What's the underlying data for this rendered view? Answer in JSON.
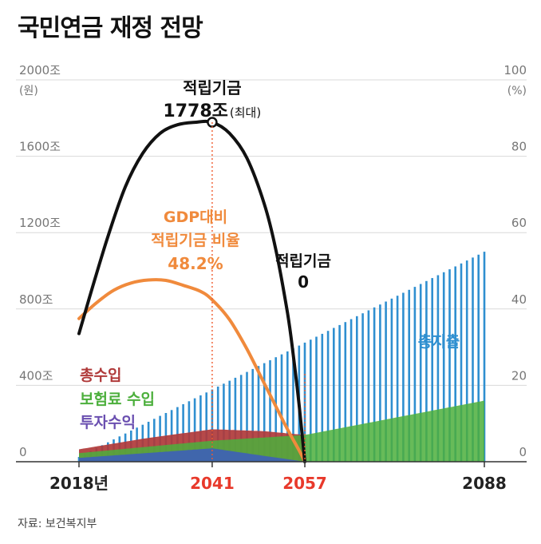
{
  "title": "국민연금 재정 전망",
  "source": "자료: 보건복지부",
  "chart_data": {
    "type": "bar",
    "title": "국민연금 재정 전망",
    "left_axis": {
      "unit": "(원)",
      "ticks": [
        "0",
        "400조",
        "800조",
        "1200조",
        "1600조",
        "2000조"
      ],
      "values": [
        0,
        400,
        800,
        1200,
        1600,
        2000
      ],
      "ylim": [
        0,
        2000
      ]
    },
    "right_axis": {
      "unit": "(%)",
      "ticks": [
        "0",
        "20",
        "40",
        "60",
        "80",
        "100"
      ],
      "values": [
        0,
        20,
        40,
        60,
        80,
        100
      ],
      "ylim": [
        0,
        100
      ]
    },
    "x_ticks": [
      {
        "year": 2018,
        "label": "2018년",
        "color": "#222222"
      },
      {
        "year": 2041,
        "label": "2041",
        "color": "#e8392b"
      },
      {
        "year": 2057,
        "label": "2057",
        "color": "#e8392b"
      },
      {
        "year": 2088,
        "label": "2088",
        "color": "#222222"
      }
    ],
    "xlim": [
      2018,
      2088
    ],
    "grid": true,
    "series": [
      {
        "name": "적립기금",
        "type": "line",
        "axis": "left",
        "color": "#111111",
        "points": [
          [
            2018,
            671
          ],
          [
            2020,
            880
          ],
          [
            2023,
            1180
          ],
          [
            2026,
            1440
          ],
          [
            2029,
            1615
          ],
          [
            2032,
            1720
          ],
          [
            2035,
            1765
          ],
          [
            2038,
            1778
          ],
          [
            2041,
            1778
          ],
          [
            2044,
            1720
          ],
          [
            2047,
            1590
          ],
          [
            2050,
            1350
          ],
          [
            2052,
            1110
          ],
          [
            2054,
            780
          ],
          [
            2055,
            560
          ],
          [
            2056,
            300
          ],
          [
            2057,
            0
          ]
        ]
      },
      {
        "name": "GDP대비 적립기금 비율",
        "type": "line",
        "axis": "right",
        "color": "#f08a3c",
        "points": [
          [
            2018,
            37.5
          ],
          [
            2021,
            41.6
          ],
          [
            2024,
            44.9
          ],
          [
            2027,
            46.8
          ],
          [
            2030,
            47.6
          ],
          [
            2033,
            47.5
          ],
          [
            2036,
            46.2
          ],
          [
            2039,
            44.6
          ],
          [
            2041,
            42.4
          ],
          [
            2044,
            37.2
          ],
          [
            2047,
            29.5
          ],
          [
            2050,
            20.5
          ],
          [
            2052,
            14.5
          ],
          [
            2054,
            8.5
          ],
          [
            2056,
            3.0
          ],
          [
            2057,
            0
          ]
        ]
      },
      {
        "name": "총지출",
        "type": "bar",
        "axis": "left",
        "color": "#2f8fd0",
        "start": [
          2018,
          25
        ],
        "end": [
          2088,
          1100
        ]
      },
      {
        "name": "보험료 수입",
        "type": "area",
        "axis": "left",
        "color": "#4caf3c",
        "points": [
          [
            2018,
            45
          ],
          [
            2041,
            110
          ],
          [
            2057,
            140
          ],
          [
            2088,
            320
          ]
        ]
      },
      {
        "name": "투자수익",
        "type": "area",
        "axis": "left",
        "color": "#3d5fb8",
        "points": [
          [
            2018,
            20
          ],
          [
            2041,
            70
          ],
          [
            2057,
            0
          ]
        ]
      },
      {
        "name": "총수입",
        "type": "area",
        "axis": "left",
        "color": "#b03a3a",
        "points": [
          [
            2018,
            65
          ],
          [
            2029,
            120
          ],
          [
            2041,
            170
          ],
          [
            2050,
            160
          ],
          [
            2057,
            140
          ]
        ]
      }
    ],
    "annotations": [
      {
        "text": "적립기금",
        "color": "#111111"
      },
      {
        "text": "1778조",
        "color": "#111111"
      },
      {
        "text": "(최대)",
        "color": "#111111"
      },
      {
        "text": "GDP대비",
        "color": "#f08a3c"
      },
      {
        "text": "적립기금 비율",
        "color": "#f08a3c"
      },
      {
        "text": "48.2%",
        "color": "#f08a3c"
      },
      {
        "text": "적립기금",
        "color": "#111111"
      },
      {
        "text": "0",
        "color": "#111111"
      },
      {
        "text": "총지출",
        "color": "#2f8fd0"
      },
      {
        "text": "총수입",
        "color": "#b03a3a"
      },
      {
        "text": "보험료 수입",
        "color": "#4caf3c"
      },
      {
        "text": "투자수익",
        "color": "#6a4fb0"
      }
    ]
  }
}
